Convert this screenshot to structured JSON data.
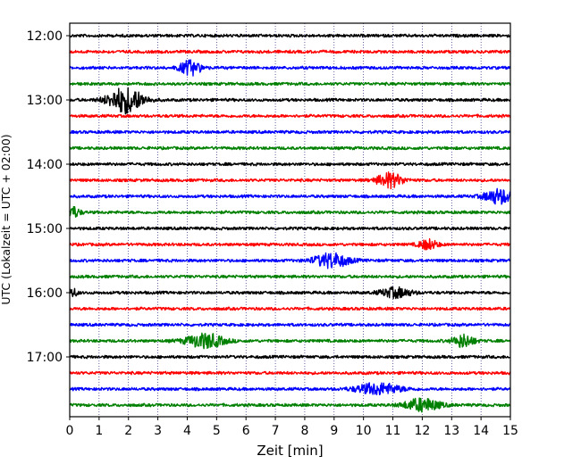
{
  "chart_data": {
    "type": "line",
    "subtype": "helicorder-seismogram",
    "xlabel": "Zeit  [min]",
    "ylabel": "UTC (Lokalzeit = UTC + 02:00)",
    "xlim": [
      0,
      15
    ],
    "x_ticks": [
      "0",
      "1",
      "2",
      "3",
      "4",
      "5",
      "6",
      "7",
      "8",
      "9",
      "10",
      "11",
      "12",
      "13",
      "14",
      "15"
    ],
    "y_tick_labels": [
      "12:00",
      "13:00",
      "14:00",
      "15:00",
      "16:00",
      "17:00"
    ],
    "trace_colors": [
      "#000000",
      "#ff0000",
      "#0000ff",
      "#008000"
    ],
    "grid": "vertical dotted lines at each minute",
    "traces": [
      {
        "start": "12:00",
        "color": "#000000",
        "events": []
      },
      {
        "start": "12:15",
        "color": "#ff0000",
        "events": []
      },
      {
        "start": "12:30",
        "color": "#0000ff",
        "events": [
          {
            "t": 4.1,
            "amp": 0.45,
            "dur": 0.9
          }
        ]
      },
      {
        "start": "12:45",
        "color": "#008000",
        "events": []
      },
      {
        "start": "13:00",
        "color": "#000000",
        "events": [
          {
            "t": 1.9,
            "amp": 0.8,
            "dur": 1.5
          }
        ]
      },
      {
        "start": "13:15",
        "color": "#ff0000",
        "events": []
      },
      {
        "start": "13:30",
        "color": "#0000ff",
        "events": []
      },
      {
        "start": "13:45",
        "color": "#008000",
        "events": []
      },
      {
        "start": "14:00",
        "color": "#000000",
        "events": []
      },
      {
        "start": "14:15",
        "color": "#ff0000",
        "events": [
          {
            "t": 10.9,
            "amp": 0.45,
            "dur": 1.1
          }
        ]
      },
      {
        "start": "14:30",
        "color": "#0000ff",
        "events": [
          {
            "t": 14.6,
            "amp": 0.45,
            "dur": 1.2
          }
        ]
      },
      {
        "start": "14:45",
        "color": "#008000",
        "events": [
          {
            "t": 0.1,
            "amp": 0.35,
            "dur": 0.6
          }
        ]
      },
      {
        "start": "15:00",
        "color": "#000000",
        "events": []
      },
      {
        "start": "15:15",
        "color": "#ff0000",
        "events": [
          {
            "t": 12.2,
            "amp": 0.3,
            "dur": 0.8
          }
        ]
      },
      {
        "start": "15:30",
        "color": "#0000ff",
        "events": [
          {
            "t": 8.9,
            "amp": 0.45,
            "dur": 1.5
          }
        ]
      },
      {
        "start": "15:45",
        "color": "#008000",
        "events": []
      },
      {
        "start": "16:00",
        "color": "#000000",
        "events": [
          {
            "t": 0.1,
            "amp": 0.25,
            "dur": 0.4
          },
          {
            "t": 11.1,
            "amp": 0.3,
            "dur": 1.3
          }
        ]
      },
      {
        "start": "16:15",
        "color": "#ff0000",
        "events": []
      },
      {
        "start": "16:30",
        "color": "#0000ff",
        "events": []
      },
      {
        "start": "16:45",
        "color": "#008000",
        "events": [
          {
            "t": 4.6,
            "amp": 0.45,
            "dur": 1.6
          },
          {
            "t": 13.4,
            "amp": 0.4,
            "dur": 0.9
          }
        ]
      },
      {
        "start": "17:00",
        "color": "#000000",
        "events": []
      },
      {
        "start": "17:15",
        "color": "#ff0000",
        "events": []
      },
      {
        "start": "17:30",
        "color": "#0000ff",
        "events": [
          {
            "t": 10.5,
            "amp": 0.35,
            "dur": 1.9
          }
        ]
      },
      {
        "start": "17:45",
        "color": "#008000",
        "events": [
          {
            "t": 12.0,
            "amp": 0.4,
            "dur": 1.5
          }
        ]
      }
    ]
  }
}
